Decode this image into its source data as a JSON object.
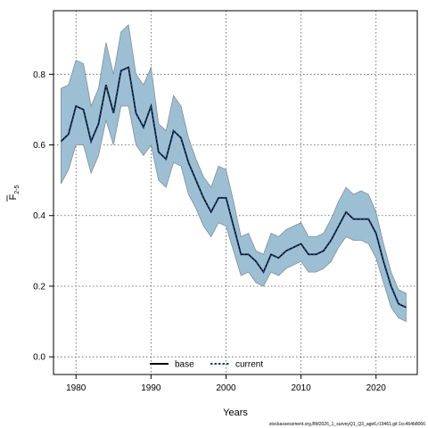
{
  "chart_data": {
    "type": "line",
    "xlabel": "Years",
    "ylabel_main": "F",
    "ylabel_sub": "2-5",
    "xlim": [
      1977,
      2025.5
    ],
    "ylim": [
      -0.05,
      0.98
    ],
    "x_ticks": [
      1980,
      1990,
      2000,
      2010,
      2020
    ],
    "y_ticks": [
      0.0,
      0.2,
      0.4,
      0.6,
      0.8
    ],
    "grid": true,
    "legend_position": "bottom-center",
    "colors": {
      "band": "#9dbfd3",
      "band_edge": "#7f8f9a",
      "base": "#000000",
      "current": "#1f3f78"
    },
    "series": [
      {
        "name": "base",
        "style": "solid",
        "x": [
          1978,
          1979,
          1980,
          1981,
          1982,
          1983,
          1984,
          1985,
          1986,
          1987,
          1988,
          1989,
          1990,
          1991,
          1992,
          1993,
          1994,
          1995,
          1996,
          1997,
          1998,
          1999,
          2000,
          2001,
          2002,
          2003,
          2004,
          2005,
          2006,
          2007,
          2008,
          2009,
          2010,
          2011,
          2012,
          2013,
          2014,
          2015,
          2016,
          2017,
          2018,
          2019,
          2020,
          2021,
          2022,
          2023,
          2024
        ],
        "values": [
          0.61,
          0.63,
          0.71,
          0.7,
          0.61,
          0.66,
          0.77,
          0.69,
          0.81,
          0.82,
          0.69,
          0.65,
          0.71,
          0.58,
          0.56,
          0.64,
          0.62,
          0.55,
          0.5,
          0.45,
          0.41,
          0.45,
          0.45,
          0.37,
          0.29,
          0.29,
          0.27,
          0.24,
          0.29,
          0.28,
          0.3,
          0.31,
          0.32,
          0.29,
          0.29,
          0.3,
          0.33,
          0.37,
          0.41,
          0.39,
          0.39,
          0.39,
          0.35,
          0.27,
          0.2,
          0.15,
          0.14
        ]
      },
      {
        "name": "current",
        "style": "dotted",
        "x": [
          1978,
          1979,
          1980,
          1981,
          1982,
          1983,
          1984,
          1985,
          1986,
          1987,
          1988,
          1989,
          1990,
          1991,
          1992,
          1993,
          1994,
          1995,
          1996,
          1997,
          1998,
          1999,
          2000,
          2001,
          2002,
          2003,
          2004,
          2005,
          2006,
          2007,
          2008,
          2009,
          2010,
          2011,
          2012,
          2013,
          2014,
          2015,
          2016,
          2017,
          2018,
          2019,
          2020,
          2021,
          2022,
          2023,
          2024
        ],
        "values": [
          0.61,
          0.63,
          0.71,
          0.7,
          0.61,
          0.66,
          0.77,
          0.69,
          0.81,
          0.82,
          0.69,
          0.65,
          0.71,
          0.58,
          0.56,
          0.64,
          0.62,
          0.55,
          0.5,
          0.45,
          0.41,
          0.45,
          0.45,
          0.37,
          0.29,
          0.29,
          0.27,
          0.24,
          0.29,
          0.28,
          0.3,
          0.31,
          0.32,
          0.29,
          0.29,
          0.3,
          0.33,
          0.37,
          0.41,
          0.39,
          0.39,
          0.39,
          0.35,
          0.27,
          0.2,
          0.15,
          0.14
        ]
      }
    ],
    "band": {
      "x": [
        1978,
        1979,
        1980,
        1981,
        1982,
        1983,
        1984,
        1985,
        1986,
        1987,
        1988,
        1989,
        1990,
        1991,
        1992,
        1993,
        1994,
        1995,
        1996,
        1997,
        1998,
        1999,
        2000,
        2001,
        2002,
        2003,
        2004,
        2005,
        2006,
        2007,
        2008,
        2009,
        2010,
        2011,
        2012,
        2013,
        2014,
        2015,
        2016,
        2017,
        2018,
        2019,
        2020,
        2021,
        2022,
        2023,
        2024
      ],
      "lower": [
        0.49,
        0.53,
        0.6,
        0.6,
        0.52,
        0.57,
        0.67,
        0.6,
        0.71,
        0.71,
        0.6,
        0.57,
        0.6,
        0.5,
        0.48,
        0.55,
        0.54,
        0.46,
        0.42,
        0.37,
        0.34,
        0.38,
        0.37,
        0.3,
        0.23,
        0.24,
        0.21,
        0.2,
        0.24,
        0.23,
        0.25,
        0.26,
        0.27,
        0.24,
        0.24,
        0.25,
        0.27,
        0.31,
        0.34,
        0.33,
        0.33,
        0.32,
        0.28,
        0.21,
        0.14,
        0.11,
        0.1
      ],
      "upper": [
        0.76,
        0.77,
        0.84,
        0.83,
        0.71,
        0.76,
        0.89,
        0.8,
        0.92,
        0.94,
        0.8,
        0.77,
        0.82,
        0.66,
        0.64,
        0.74,
        0.71,
        0.62,
        0.56,
        0.51,
        0.48,
        0.54,
        0.53,
        0.44,
        0.34,
        0.35,
        0.3,
        0.29,
        0.35,
        0.34,
        0.36,
        0.37,
        0.38,
        0.34,
        0.34,
        0.35,
        0.39,
        0.44,
        0.48,
        0.46,
        0.47,
        0.46,
        0.41,
        0.32,
        0.24,
        0.19,
        0.18
      ]
    }
  },
  "footer": {
    "source": "stockassessment.org,BM2026_1_surveyQ1_Q3_age6,r19461,git:1cc464b8066"
  }
}
